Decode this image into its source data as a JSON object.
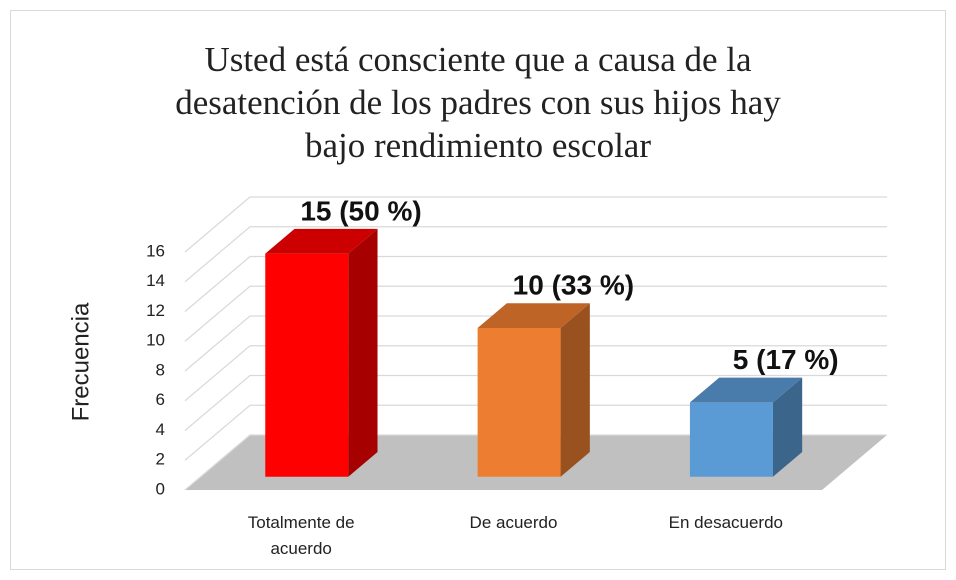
{
  "chart_data": {
    "type": "bar3d",
    "title": "Usted está consciente que a causa de la desatención de los padres con sus hijos hay bajo rendimiento escolar",
    "y_label": "Frecuencia",
    "categories": [
      "Totalmente de acuerdo",
      "De acuerdo",
      "En desacuerdo"
    ],
    "values": [
      15,
      10,
      5
    ],
    "value_labels": [
      "15 (50 %)",
      "10 (33 %)",
      "5 (17 %)"
    ],
    "colors": [
      "#ff0000",
      "#ed7d31",
      "#5b9bd5"
    ],
    "ylim": [
      0,
      16
    ],
    "yticks": [
      0,
      2,
      4,
      6,
      8,
      10,
      12,
      14,
      16
    ],
    "grid": true
  }
}
